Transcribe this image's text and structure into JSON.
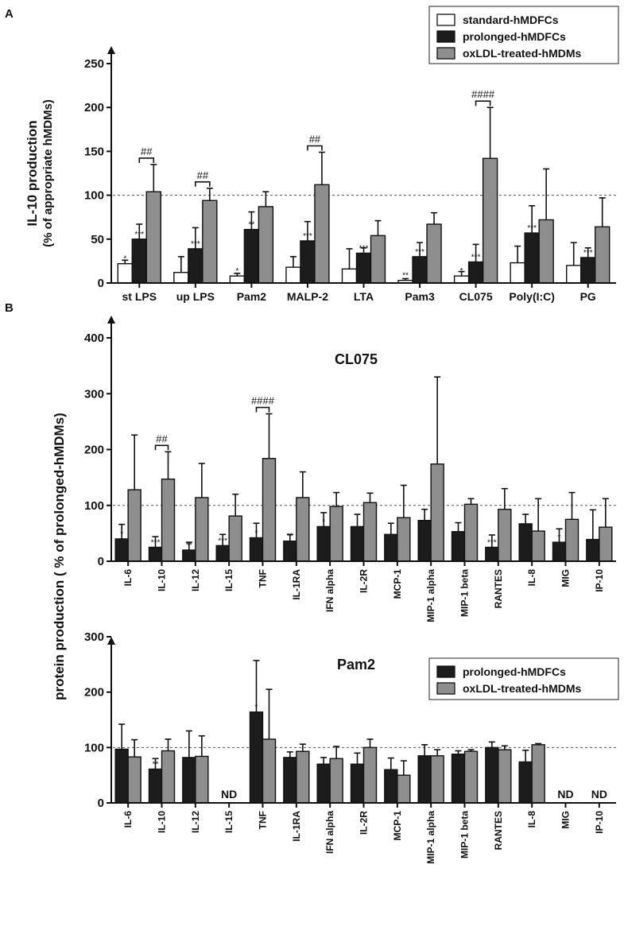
{
  "colors": {
    "standard": "#ffffff",
    "prolonged": "#1c1c1c",
    "oxldl": "#8e8e8e",
    "ref_line": "#555555"
  },
  "panel_a_letter": "A",
  "panel_b_letter": "B",
  "shared_ylabel_b": "protein production  ( % of prolonged-hMDMs)",
  "chart_data": [
    {
      "type": "bar",
      "panel": "A",
      "title": "",
      "ylabel": "IL-10 production",
      "ylabel_sub": "(% of appropriate hMDMs)",
      "xlabel": "",
      "ylim": [
        0,
        250
      ],
      "yticks": [
        0,
        50,
        100,
        150,
        200,
        250
      ],
      "reference_line": 100,
      "categories": [
        "st LPS",
        "up LPS",
        "Pam2",
        "MALP-2",
        "LTA",
        "Pam3",
        "CL075",
        "Poly(I:C)",
        "PG"
      ],
      "series": [
        {
          "name": "standard-hMDFCs",
          "values": [
            22,
            12,
            8,
            18,
            16,
            3,
            8,
            23,
            20
          ],
          "errors": [
            4,
            18,
            3,
            12,
            23,
            2,
            5,
            19,
            26
          ],
          "stars": [
            "*",
            "",
            "*",
            "",
            "",
            "**",
            "*",
            "",
            ""
          ]
        },
        {
          "name": "prolonged-hMDFCs",
          "values": [
            50,
            39,
            61,
            48,
            34,
            30,
            24,
            57,
            29
          ],
          "errors": [
            17,
            24,
            20,
            22,
            6,
            16,
            20,
            31,
            11
          ],
          "stars": [
            "***",
            "***",
            "**",
            "***",
            "***",
            "***",
            "***",
            "***",
            "***"
          ]
        },
        {
          "name": "oxLDL-treated-hMDMs",
          "values": [
            104,
            94,
            87,
            112,
            54,
            67,
            142,
            72,
            64
          ],
          "errors": [
            31,
            14,
            17,
            37,
            17,
            13,
            58,
            58,
            33
          ],
          "stars": [
            "",
            "",
            "",
            "",
            "",
            "",
            "",
            "",
            ""
          ]
        }
      ],
      "significance": [
        {
          "category": "st LPS",
          "label": "##"
        },
        {
          "category": "up LPS",
          "label": "##"
        },
        {
          "category": "MALP-2",
          "label": "##"
        },
        {
          "category": "CL075",
          "label": "####"
        }
      ],
      "legend": [
        "standard-hMDFCs",
        "prolonged-hMDFCs",
        "oxLDL-treated-hMDMs"
      ],
      "legend_position": "top-right"
    },
    {
      "type": "bar",
      "panel": "B-top",
      "title": "CL075",
      "ylim": [
        0,
        400
      ],
      "yticks": [
        0,
        100,
        200,
        300,
        400
      ],
      "reference_line": 100,
      "categories": [
        "IL-6",
        "IL-10",
        "IL-12",
        "IL-15",
        "TNF",
        "IL-1RA",
        "IFN alpha",
        "IL-2R",
        "MCP-1",
        "MIP-1 alpha",
        "MIP-1 beta",
        "RANTES",
        "IL-8",
        "MIG",
        "IP-10"
      ],
      "series": [
        {
          "name": "prolonged-hMDFCs",
          "values": [
            40,
            25,
            20,
            28,
            42,
            36,
            62,
            62,
            48,
            73,
            53,
            25,
            67,
            34,
            39
          ],
          "errors": [
            26,
            19,
            14,
            20,
            26,
            12,
            25,
            22,
            20,
            20,
            16,
            22,
            17,
            24,
            53
          ],
          "stars": [
            "*",
            "***",
            "**",
            "***",
            "*",
            "**",
            "*",
            "",
            "",
            "",
            "",
            "***",
            "",
            "*",
            ""
          ]
        },
        {
          "name": "oxLDL-treated-hMDMs",
          "values": [
            128,
            147,
            114,
            81,
            184,
            114,
            98,
            105,
            78,
            174,
            102,
            93,
            54,
            75,
            61
          ],
          "errors": [
            98,
            49,
            61,
            39,
            80,
            46,
            25,
            17,
            58,
            156,
            10,
            37,
            58,
            48,
            51
          ],
          "stars": [
            "",
            "",
            "",
            "",
            "",
            "",
            "",
            "",
            "",
            "",
            "",
            "",
            "",
            "",
            ""
          ]
        }
      ],
      "significance": [
        {
          "category": "IL-10",
          "label": "##"
        },
        {
          "category": "TNF",
          "label": "####"
        }
      ]
    },
    {
      "type": "bar",
      "panel": "B-bottom",
      "title": "Pam2",
      "ylim": [
        0,
        300
      ],
      "yticks": [
        0,
        100,
        200,
        300
      ],
      "reference_line": 100,
      "categories": [
        "IL-6",
        "IL-10",
        "IL-12",
        "IL-15",
        "TNF",
        "IL-1RA",
        "IFN alpha",
        "IL-2R",
        "MCP-1",
        "MIP-1 alpha",
        "MIP-1 beta",
        "RANTES",
        "IL-8",
        "MIG",
        "IP-10"
      ],
      "series": [
        {
          "name": "prolonged-hMDFCs",
          "values": [
            97,
            61,
            82,
            null,
            164,
            82,
            70,
            70,
            60,
            85,
            88,
            100,
            74,
            null,
            null
          ],
          "errors": [
            45,
            19,
            48,
            null,
            93,
            10,
            12,
            20,
            21,
            20,
            6,
            10,
            21,
            null,
            null
          ],
          "stars": [
            "",
            "**",
            "",
            "",
            "*",
            "",
            "",
            "",
            "",
            "",
            "",
            "",
            "",
            "",
            ""
          ]
        },
        {
          "name": "oxLDL-treated-hMDMs",
          "values": [
            83,
            94,
            84,
            null,
            115,
            93,
            80,
            100,
            50,
            85,
            93,
            96,
            105,
            null,
            null
          ],
          "errors": [
            31,
            21,
            37,
            null,
            90,
            13,
            22,
            15,
            26,
            11,
            3,
            7,
            2,
            null,
            null
          ],
          "stars": [
            "",
            "",
            "",
            "",
            "",
            "",
            "",
            "",
            "",
            "",
            "",
            "",
            "",
            "",
            ""
          ]
        }
      ],
      "nd_label": "ND",
      "nd_categories": [
        "IL-15",
        "MIG",
        "IP-10"
      ],
      "legend": [
        "prolonged-hMDFCs",
        "oxLDL-treated-hMDMs"
      ],
      "legend_position": "top-right"
    }
  ]
}
